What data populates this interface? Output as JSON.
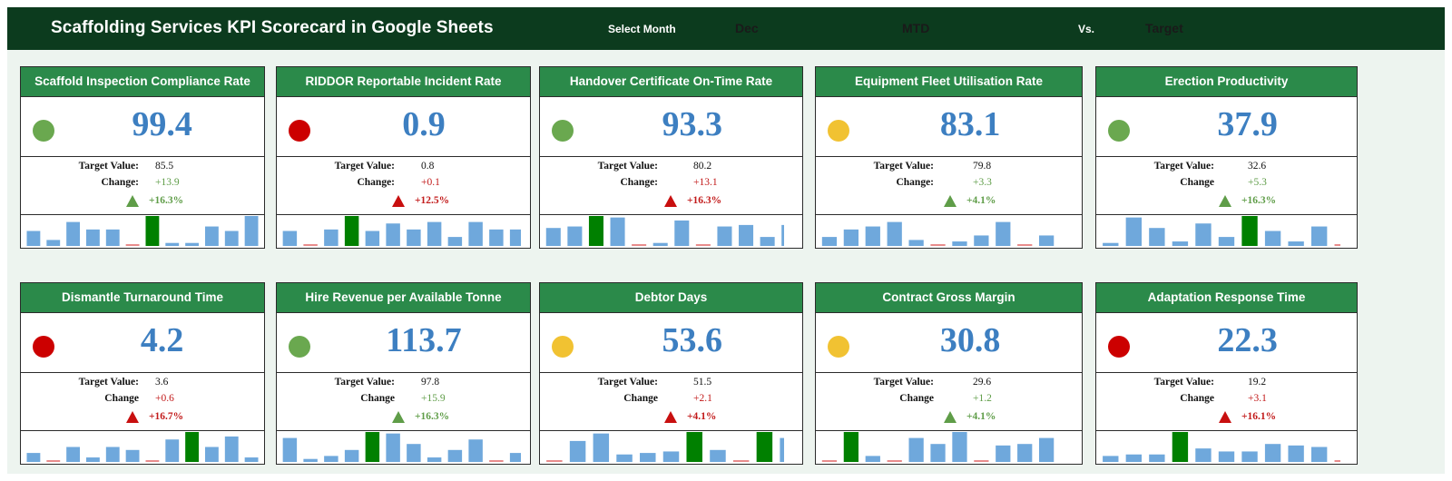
{
  "header": {
    "title": "Scaffolding Services KPI Scorecard in Google Sheets",
    "select_month_label": "Select Month",
    "month": "Dec",
    "period": "MTD",
    "vs_label": "Vs.",
    "compare": "Target"
  },
  "colors": {
    "green_status": "#6aa84f",
    "red_status": "#cc0000",
    "amber_status": "#f1c232",
    "value_blue": "#3d85c6",
    "bar_blue": "#6fa8dc",
    "bar_highlight": "#008000",
    "zero_tick": "#e06666"
  },
  "labels": {
    "target": "Target Value:"
  },
  "cards": [
    {
      "title": "Scaffold Inspection Compliance Rate",
      "status": "green",
      "value": "99.4",
      "target": "85.5",
      "change_label": "Change:",
      "change": "+13.9",
      "direction": "up",
      "positive": true,
      "pct": "+16.3%",
      "bars": [
        0.5,
        0.2,
        0.8,
        0.55,
        0.55,
        0,
        1,
        0.1,
        0.1,
        0.65,
        0.5,
        1
      ],
      "highlight": 6
    },
    {
      "title": "RIDDOR Reportable Incident Rate",
      "status": "red",
      "value": "0.9",
      "target": "0.8",
      "change_label": "Change:",
      "change": "+0.1",
      "direction": "up",
      "positive": false,
      "pct": "+12.5%",
      "bars": [
        0.5,
        0,
        0.55,
        1,
        0.5,
        0.75,
        0.55,
        0.8,
        0.3,
        0.8,
        0.55,
        0.55
      ],
      "highlight": 3
    },
    {
      "title": "Handover Certificate On-Time Rate",
      "status": "green",
      "value": "93.3",
      "target": "80.2",
      "change_label": "Change:",
      "change": "+13.1",
      "direction": "up",
      "positive": false,
      "pct": "+16.3%",
      "bars": [
        0.6,
        0.65,
        1,
        0.95,
        0,
        0.1,
        0.85,
        0,
        0.65,
        0.7,
        0.3,
        0.7
      ],
      "highlight": 2
    },
    {
      "title": "Equipment Fleet Utilisation Rate",
      "status": "amber",
      "value": "83.1",
      "target": "79.8",
      "change_label": "Change:",
      "change": "+3.3",
      "direction": "up",
      "positive": true,
      "pct": "+4.1%",
      "bars": [
        0.3,
        0.55,
        0.65,
        0.8,
        0.2,
        0,
        0.15,
        0.35,
        0.8,
        0,
        0.35,
        1
      ],
      "highlight": 11
    },
    {
      "title": "Erection Productivity",
      "status": "green",
      "value": "37.9",
      "target": "32.6",
      "change_label": "Change",
      "change": "+5.3",
      "direction": "up",
      "positive": true,
      "pct": "+16.3%",
      "bars": [
        0.1,
        0.95,
        0.6,
        0.15,
        0.75,
        0.3,
        1,
        0.5,
        0.15,
        0.65,
        0
      ],
      "highlight": 6
    },
    {
      "title": "Dismantle Turnaround Time",
      "status": "red",
      "value": "4.2",
      "target": "3.6",
      "change_label": "Change",
      "change": "+0.6",
      "direction": "up",
      "positive": false,
      "pct": "+16.7%",
      "bars": [
        0.3,
        0,
        0.5,
        0.15,
        0.5,
        0.4,
        0,
        0.75,
        1,
        0.5,
        0.85,
        0.15
      ],
      "highlight": 8
    },
    {
      "title": "Hire Revenue per Available Tonne",
      "status": "green",
      "value": "113.7",
      "target": "97.8",
      "change_label": "Change",
      "change": "+15.9",
      "direction": "up",
      "positive": true,
      "pct": "+16.3%",
      "bars": [
        0.8,
        0.1,
        0.2,
        0.4,
        1,
        0.95,
        0.6,
        0.15,
        0.4,
        0.75,
        0,
        0.3
      ],
      "highlight": 4
    },
    {
      "title": "Debtor Days",
      "status": "amber",
      "value": "53.6",
      "target": "51.5",
      "change_label": "Change",
      "change": "+2.1",
      "direction": "up",
      "positive": false,
      "pct": "+4.1%",
      "bars": [
        0,
        0.7,
        0.95,
        0.25,
        0.3,
        0.35,
        1,
        0.4,
        0,
        1,
        0.8
      ],
      "highlight": 6,
      "highlight2": 9
    },
    {
      "title": "Contract Gross Margin",
      "status": "amber",
      "value": "30.8",
      "target": "29.6",
      "change_label": "Change",
      "change": "+1.2",
      "direction": "up",
      "positive": true,
      "pct": "+4.1%",
      "bars": [
        0,
        1,
        0.2,
        0,
        0.8,
        0.6,
        1,
        0,
        0.55,
        0.6,
        0.8,
        0.65
      ],
      "highlight": 1
    },
    {
      "title": "Adaptation Response Time",
      "status": "red",
      "value": "22.3",
      "target": "19.2",
      "change_label": "Change",
      "change": "+3.1",
      "direction": "up",
      "positive": false,
      "pct": "+16.1%",
      "bars": [
        0.2,
        0.25,
        0.25,
        1,
        0.45,
        0.35,
        0.35,
        0.6,
        0.55,
        0.5,
        0
      ],
      "highlight": 3
    }
  ]
}
